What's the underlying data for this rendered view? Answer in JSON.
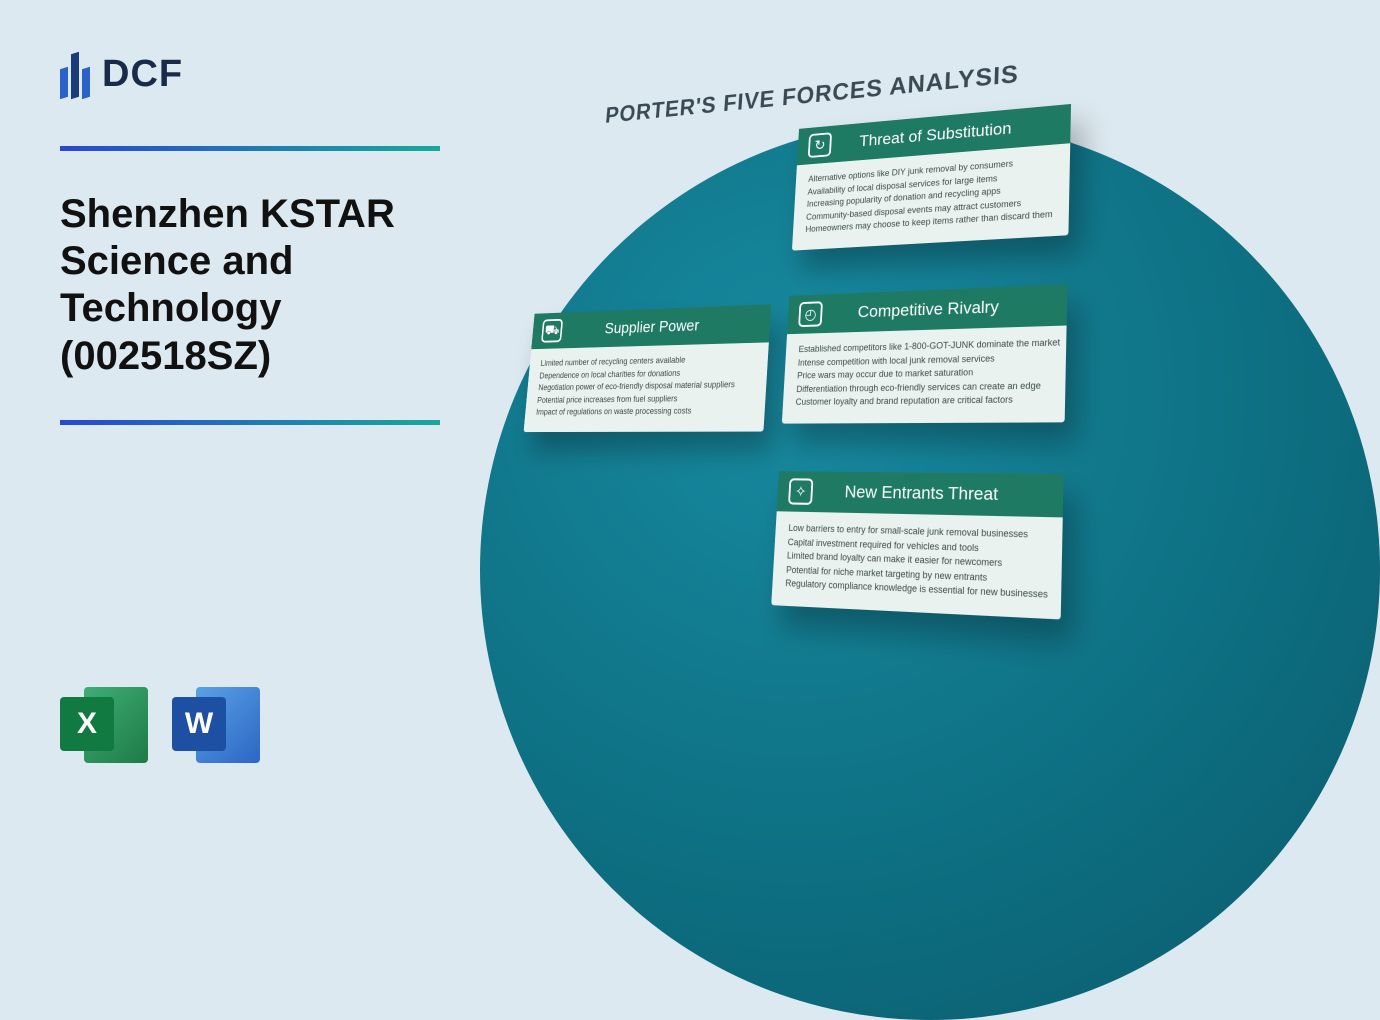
{
  "logo": {
    "text": "DCF"
  },
  "title": "Shenzhen KSTAR Science and Technology (002518SZ)",
  "diagram_title": "PORTER'S FIVE FORCES ANALYSIS",
  "file_icons": {
    "excel": {
      "letter": "X"
    },
    "word": {
      "letter": "W"
    }
  },
  "cards": {
    "substitution": {
      "title": "Threat of Substitution",
      "icon": "↻",
      "lines": [
        "Alternative options like DIY junk removal by consumers",
        "Availability of local disposal services for large items",
        "Increasing popularity of donation and recycling apps",
        "Community-based disposal events may attract customers",
        "Homeowners may choose to keep items rather than discard them"
      ]
    },
    "supplier": {
      "title": "Supplier Power",
      "icon": "⛟",
      "lines": [
        "Limited number of recycling centers available",
        "Dependence on local charities for donations",
        "Negotiation power of eco-friendly disposal material suppliers",
        "Potential price increases from fuel suppliers",
        "Impact of regulations on waste processing costs"
      ]
    },
    "rivalry": {
      "title": "Competitive Rivalry",
      "icon": "◴",
      "lines": [
        "Established competitors like 1-800-GOT-JUNK dominate the market",
        "Intense competition with local junk removal services",
        "Price wars may occur due to market saturation",
        "Differentiation through eco-friendly services can create an edge",
        "Customer loyalty and brand reputation are critical factors"
      ]
    },
    "entrants": {
      "title": "New Entrants Threat",
      "icon": "✧",
      "lines": [
        "Low barriers to entry for small-scale junk removal businesses",
        "Capital investment required for vehicles and tools",
        "Limited brand loyalty can make it easier for newcomers",
        "Potential for niche market targeting by new entrants",
        "Regulatory compliance knowledge is essential for new businesses"
      ]
    }
  },
  "colors": {
    "background": "#dde9f0",
    "circle_gradient": [
      "#178aa0",
      "#0d6d80",
      "#0a5a6a"
    ],
    "card_header": "#1f7a63",
    "card_body": "#e9f2ef",
    "gradient_line": [
      "#2947d1",
      "#18a99a"
    ],
    "excel": "#117a41",
    "word": "#1d4fa3"
  }
}
